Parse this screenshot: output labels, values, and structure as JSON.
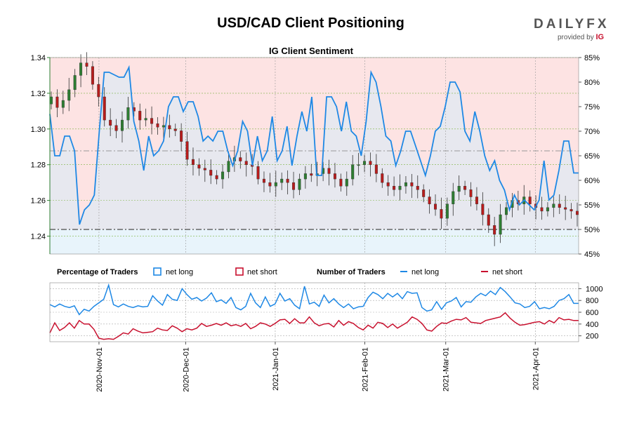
{
  "header": {
    "title": "USD/CAD Client Positioning",
    "brand": "DAILYFX",
    "brand_tagline": "provided by",
    "brand_partner": "IG"
  },
  "chart_data": [
    {
      "type": "candlestick+line",
      "title": "IG Client Sentiment",
      "x_start": "2020-10-15",
      "x_end": "2021-04-16",
      "xticks": [
        "2020-Nov-01",
        "2020-Dec-01",
        "2021-Jan-01",
        "2021-Feb-01",
        "2021-Mar-01",
        "2021-Apr-01"
      ],
      "y_left": {
        "label": "",
        "ylim": [
          1.23,
          1.34
        ],
        "ticks": [
          "1.24",
          "1.26",
          "1.28",
          "1.30",
          "1.32",
          "1.34"
        ]
      },
      "y_right": {
        "label": "",
        "ylim": [
          45,
          85
        ],
        "ticks": [
          "45%",
          "50%",
          "55%",
          "60%",
          "65%",
          "70%",
          "75%",
          "80%",
          "85%"
        ]
      },
      "reference_lines": [
        {
          "axis": "right",
          "value": 50
        },
        {
          "axis": "right",
          "value": 66
        }
      ],
      "grid": true,
      "candles": {
        "name": "USD/CAD",
        "close_path": [
          1.318,
          1.312,
          1.316,
          1.322,
          1.33,
          1.337,
          1.335,
          1.325,
          1.318,
          1.305,
          1.302,
          1.299,
          1.305,
          1.312,
          1.31,
          1.305,
          1.306,
          1.303,
          1.301,
          1.302,
          1.3,
          1.299,
          1.293,
          1.283,
          1.28,
          1.278,
          1.277,
          1.274,
          1.272,
          1.276,
          1.282,
          1.284,
          1.282,
          1.28,
          1.279,
          1.272,
          1.27,
          1.268,
          1.27,
          1.272,
          1.27,
          1.266,
          1.272,
          1.275,
          1.274,
          1.275,
          1.278,
          1.275,
          1.272,
          1.268,
          1.272,
          1.28,
          1.28,
          1.282,
          1.28,
          1.275,
          1.27,
          1.268,
          1.266,
          1.268,
          1.27,
          1.268,
          1.266,
          1.262,
          1.258,
          1.255,
          1.25,
          1.258,
          1.265,
          1.268,
          1.266,
          1.262,
          1.258,
          1.252,
          1.246,
          1.241,
          1.252,
          1.256,
          1.26,
          1.258,
          1.262,
          1.258,
          1.256,
          1.254,
          1.256,
          1.258,
          1.256,
          1.255,
          1.254,
          1.252
        ]
      },
      "series": [
        {
          "name": "net long",
          "color": "#1e88e5",
          "values": [
            73.5,
            65,
            65,
            69,
            69,
            66,
            51,
            54,
            55,
            57,
            70,
            82,
            82,
            81.5,
            81,
            81,
            83,
            72,
            68,
            62,
            69,
            65,
            66,
            68,
            75,
            77,
            77,
            74,
            76,
            76,
            73,
            68,
            69,
            68,
            70,
            70,
            66,
            63,
            66,
            72,
            70,
            63,
            69,
            64,
            66,
            73,
            64,
            66,
            71,
            63,
            69,
            74,
            70,
            77,
            61,
            61,
            77,
            77,
            75,
            70,
            76,
            70,
            69,
            65,
            72,
            82,
            80,
            75,
            69,
            68,
            63,
            66,
            70,
            70,
            67,
            64,
            61,
            65,
            70,
            71,
            75,
            80,
            80,
            78,
            70,
            68,
            74,
            70,
            65,
            62,
            64,
            60,
            58,
            54,
            57,
            55,
            56,
            55,
            54,
            56,
            64,
            56,
            57,
            62,
            68,
            68,
            61.5,
            61.5
          ]
        }
      ]
    },
    {
      "type": "line",
      "title": "",
      "x_start": "2020-10-15",
      "x_end": "2021-04-16",
      "y": {
        "label": "",
        "ylim": [
          100,
          1100
        ],
        "ticks": [
          "200",
          "400",
          "600",
          "800",
          "1000"
        ]
      },
      "legend": {
        "placement": "top",
        "groups": [
          {
            "title": "Percentage of Traders",
            "entries": [
              "net long",
              "net short"
            ]
          },
          {
            "title": "Number of Traders",
            "entries": [
              "net long",
              "net short"
            ]
          }
        ]
      },
      "series": [
        {
          "name": "net long",
          "color": "#1e88e5",
          "values": [
            730,
            690,
            740,
            700,
            680,
            710,
            560,
            650,
            620,
            700,
            760,
            820,
            1060,
            730,
            690,
            740,
            700,
            680,
            710,
            690,
            700,
            880,
            790,
            720,
            900,
            820,
            800,
            1000,
            900,
            820,
            850,
            790,
            840,
            930,
            780,
            810,
            750,
            850,
            680,
            640,
            700,
            920,
            760,
            680,
            860,
            700,
            740,
            920,
            790,
            830,
            720,
            660,
            1040,
            740,
            770,
            700,
            890,
            760,
            830,
            740,
            680,
            740,
            660,
            690,
            700,
            850,
            940,
            900,
            830,
            920,
            860,
            920,
            830,
            950,
            920,
            930,
            680,
            620,
            640,
            780,
            650,
            760,
            790,
            850,
            690,
            780,
            770,
            860,
            920,
            880,
            960,
            900,
            1020,
            950,
            860,
            760,
            740,
            680,
            700,
            780,
            660,
            680,
            660,
            700,
            800,
            830,
            900,
            750,
            750
          ]
        },
        {
          "name": "net short",
          "color": "#c8102e",
          "values": [
            250,
            420,
            290,
            340,
            420,
            330,
            460,
            400,
            400,
            310,
            160,
            140,
            150,
            140,
            190,
            250,
            230,
            320,
            280,
            250,
            260,
            270,
            330,
            300,
            290,
            370,
            330,
            270,
            320,
            300,
            330,
            410,
            360,
            380,
            410,
            380,
            420,
            370,
            390,
            360,
            410,
            320,
            360,
            420,
            400,
            360,
            410,
            470,
            480,
            410,
            490,
            420,
            420,
            520,
            420,
            370,
            400,
            410,
            350,
            460,
            380,
            440,
            410,
            340,
            300,
            380,
            330,
            430,
            410,
            340,
            400,
            330,
            380,
            430,
            520,
            480,
            410,
            300,
            280,
            360,
            420,
            410,
            450,
            480,
            470,
            510,
            430,
            420,
            410,
            460,
            480,
            500,
            520,
            590,
            500,
            430,
            380,
            390,
            410,
            430,
            440,
            400,
            460,
            420,
            510,
            470,
            480,
            460,
            460
          ]
        }
      ]
    }
  ]
}
